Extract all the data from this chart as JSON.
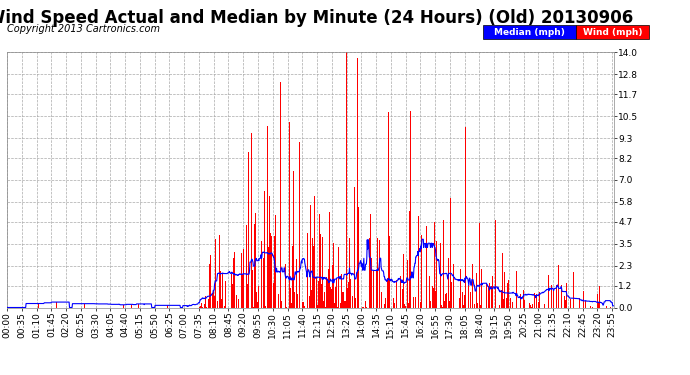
{
  "title": "Wind Speed Actual and Median by Minute (24 Hours) (Old) 20130906",
  "copyright": "Copyright 2013 Cartronics.com",
  "yticks": [
    0.0,
    1.2,
    2.3,
    3.5,
    4.7,
    5.8,
    7.0,
    8.2,
    9.3,
    10.5,
    11.7,
    12.8,
    14.0
  ],
  "ymax": 14.0,
  "ymin": 0.0,
  "bg_color": "#ffffff",
  "plot_bg_color": "#ffffff",
  "grid_color": "#aaaaaa",
  "bar_color": "#ff0000",
  "line_color": "#0000ff",
  "legend_median_bg": "#0000ff",
  "legend_wind_bg": "#ff0000",
  "legend_text_color": "#ffffff",
  "title_fontsize": 12,
  "copyright_fontsize": 7,
  "tick_label_fontsize": 6.5
}
